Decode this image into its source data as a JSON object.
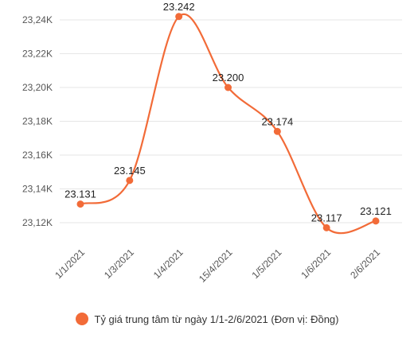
{
  "chart_data": {
    "type": "line",
    "title": "",
    "xlabel": "",
    "ylabel": "",
    "categories": [
      "1/1/2021",
      "1/3/2021",
      "1/4/2021",
      "15/4/2021",
      "1/5/2021",
      "1/6/2021",
      "2/6/2021"
    ],
    "series": [
      {
        "name": "Tỷ giá trung tâm từ ngày 1/1-2/6/2021 (Đơn vị: Đồng)",
        "values": [
          23131,
          23145,
          23242,
          23200,
          23174,
          23117,
          23121
        ],
        "data_labels": [
          "23.131",
          "23.145",
          "23.242",
          "23.200",
          "23.174",
          "23.117",
          "23.121"
        ],
        "color": "#f26b38"
      }
    ],
    "ylim": [
      23110,
      23245
    ],
    "yticks": [
      23120,
      23140,
      23160,
      23180,
      23200,
      23220,
      23240
    ],
    "ytick_labels": [
      "23,12K",
      "23,14K",
      "23,16K",
      "23,18K",
      "23,20K",
      "23,22K",
      "23,24K"
    ],
    "grid": true,
    "legend_position": "bottom",
    "smooth": true
  },
  "colors": {
    "line": "#f26b38",
    "grid": "#e6e6e6",
    "tick_text": "#555555",
    "label_text": "#222222"
  }
}
